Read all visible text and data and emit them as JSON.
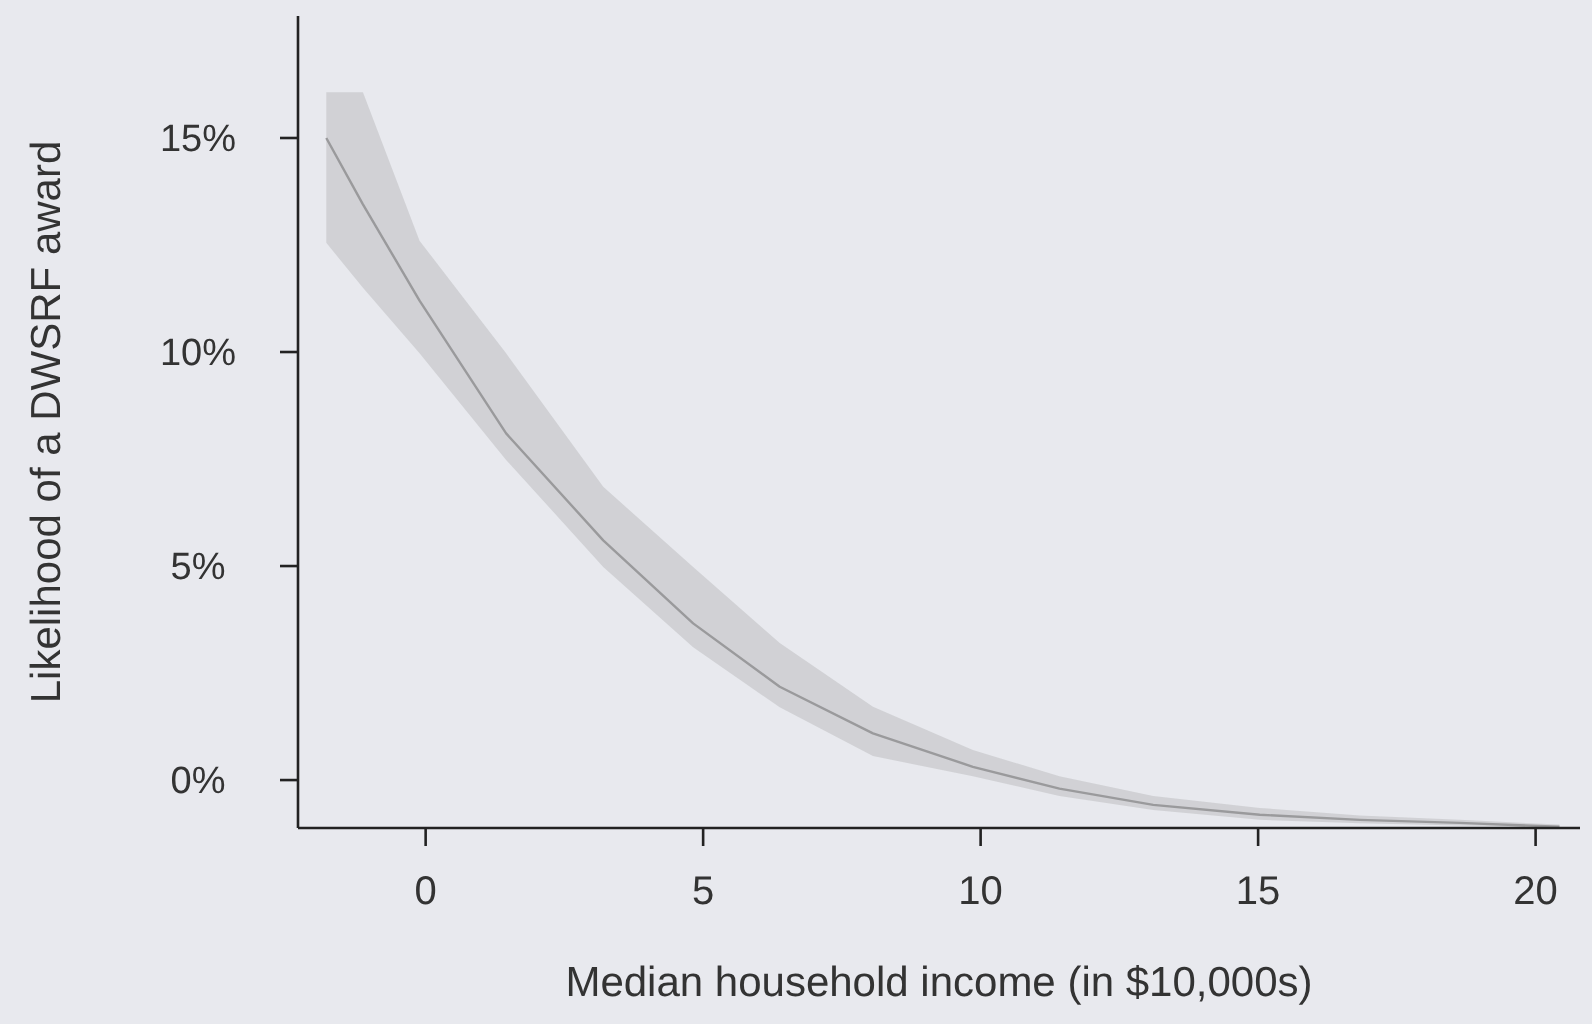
{
  "chart_data": {
    "type": "line",
    "xlabel": "Median household income (in $10,000s)",
    "ylabel": "Likelihood of a DWSRF award",
    "xlim": [
      -2.3,
      20.8
    ],
    "xticks": [
      0,
      5,
      10,
      15,
      20
    ],
    "ylim": [
      -1.12,
      17.85
    ],
    "yticks": [
      {
        "value": 0,
        "label": "0%"
      },
      {
        "value": 5,
        "label": "5%"
      },
      {
        "value": 10,
        "label": "10%"
      },
      {
        "value": 15,
        "label": "15%"
      }
    ],
    "grid": false,
    "marker": "none",
    "line_style": "solid",
    "series": [
      {
        "color": "#9a9a9c",
        "x": [
          -1.79,
          -1.13,
          -0.11,
          1.45,
          3.2,
          4.82,
          6.38,
          8.06,
          9.86,
          11.42,
          13.11,
          15.03,
          16.83,
          18.63,
          20.43
        ],
        "values": [
          15.0,
          13.45,
          11.2,
          8.1,
          5.6,
          3.66,
          2.18,
          1.09,
          0.31,
          -0.2,
          -0.58,
          -0.81,
          -0.93,
          -1.0,
          -1.09
        ],
        "lower": [
          12.55,
          11.5,
          9.97,
          7.48,
          4.98,
          3.1,
          1.7,
          0.56,
          0.09,
          -0.37,
          -0.7,
          -0.93,
          -1.01,
          -1.06,
          -1.1
        ],
        "upper": [
          16.07,
          16.07,
          12.6,
          9.97,
          6.85,
          4.98,
          3.2,
          1.71,
          0.7,
          0.09,
          -0.37,
          -0.65,
          -0.83,
          -0.93,
          -1.04
        ]
      }
    ]
  }
}
